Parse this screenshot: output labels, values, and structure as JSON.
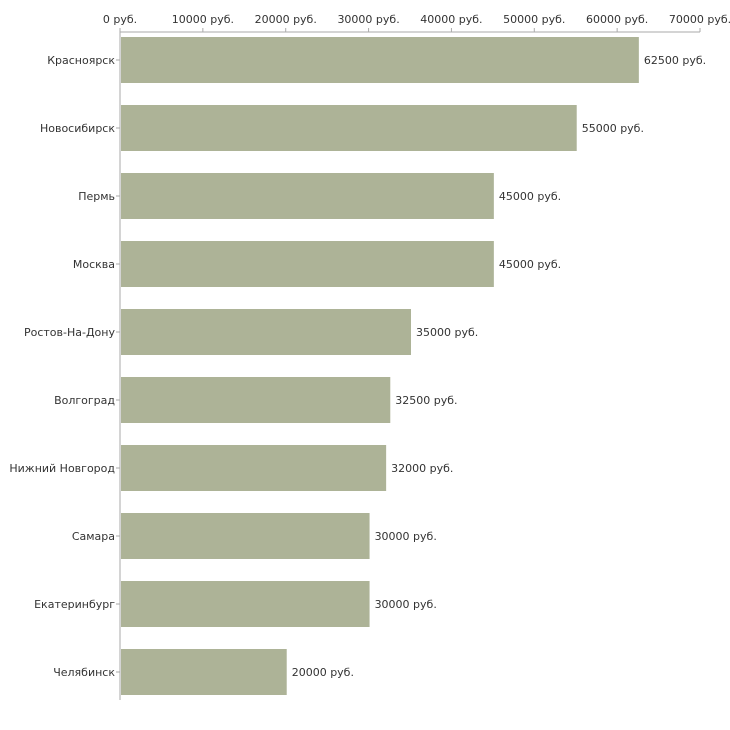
{
  "chart_data": {
    "type": "bar",
    "orientation": "horizontal",
    "title": "",
    "xlabel": "",
    "ylabel": "",
    "xlim": [
      0,
      70000
    ],
    "tick_values": [
      0,
      10000,
      20000,
      30000,
      40000,
      50000,
      60000,
      70000
    ],
    "tick_labels": [
      "0 руб.",
      "10000 руб.",
      "20000 руб.",
      "30000 руб.",
      "40000 руб.",
      "50000 руб.",
      "60000 руб.",
      "70000 руб."
    ],
    "axis_position": "top",
    "grid": false,
    "categories": [
      "Красноярск",
      "Новосибирск",
      "Пермь",
      "Москва",
      "Ростов-На-Дону",
      "Волгоград",
      "Нижний Новгород",
      "Самара",
      "Екатеринбург",
      "Челябинск"
    ],
    "values": [
      62500,
      55000,
      45000,
      45000,
      35000,
      32500,
      32000,
      30000,
      30000,
      20000
    ],
    "value_labels": [
      "62500 руб.",
      "55000 руб.",
      "45000 руб.",
      "45000 руб.",
      "35000 руб.",
      "32500 руб.",
      "32000 руб.",
      "30000 руб.",
      "30000 руб.",
      "20000 руб."
    ],
    "bar_color": "#adb397",
    "axis_color": "#aaaaaa"
  }
}
